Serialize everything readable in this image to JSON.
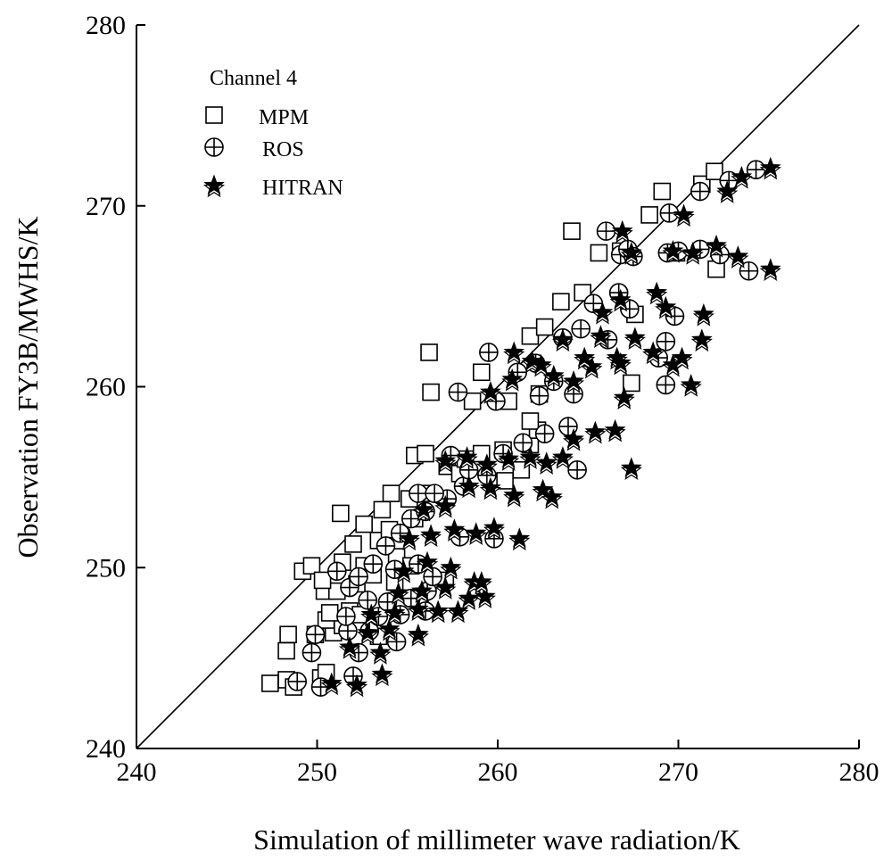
{
  "chart_data": {
    "type": "scatter",
    "xlabel": "Simulation of millimeter wave radiation/K",
    "ylabel": "Observation FY3B/MWHS/K",
    "xlim": [
      240,
      280
    ],
    "ylim": [
      240,
      280
    ],
    "xticks": [
      240,
      250,
      260,
      270,
      280
    ],
    "yticks": [
      240,
      250,
      260,
      270,
      280
    ],
    "grid": false,
    "reference_line": {
      "from": [
        240,
        240
      ],
      "to": [
        280,
        280
      ]
    },
    "legend": {
      "title": "Channel 4",
      "placement": "top-left",
      "entries": [
        "MPM",
        "ROS",
        "HITRAN"
      ]
    },
    "series": [
      {
        "name": "MPM",
        "marker": "open-square",
        "points": [
          [
            247.4,
            243.6
          ],
          [
            248.3,
            243.8
          ],
          [
            248.7,
            243.4
          ],
          [
            250.2,
            243.9
          ],
          [
            250.5,
            244.2
          ],
          [
            248.3,
            245.4
          ],
          [
            248.4,
            246.3
          ],
          [
            249.9,
            246.3
          ],
          [
            250.9,
            246.4
          ],
          [
            251.4,
            246.8
          ],
          [
            250.5,
            247.1
          ],
          [
            250.7,
            247.5
          ],
          [
            251.8,
            247.6
          ],
          [
            252.4,
            247.4
          ],
          [
            250.4,
            248.7
          ],
          [
            251.1,
            248.7
          ],
          [
            252.2,
            249.1
          ],
          [
            249.2,
            249.8
          ],
          [
            249.7,
            250.1
          ],
          [
            250.3,
            249.3
          ],
          [
            251.4,
            250.3
          ],
          [
            252.6,
            250.1
          ],
          [
            253.1,
            249.6
          ],
          [
            252.0,
            251.3
          ],
          [
            253.4,
            251.5
          ],
          [
            251.3,
            253.0
          ],
          [
            252.6,
            252.4
          ],
          [
            253.6,
            253.2
          ],
          [
            254.1,
            254.1
          ],
          [
            255.1,
            253.8
          ],
          [
            254.0,
            252.1
          ],
          [
            255.4,
            252.7
          ],
          [
            256.2,
            254.1
          ],
          [
            254.4,
            250.6
          ],
          [
            255.2,
            250.1
          ],
          [
            255.4,
            256.2
          ],
          [
            256.0,
            256.3
          ],
          [
            257.2,
            255.6
          ],
          [
            257.9,
            255.2
          ],
          [
            258.2,
            256.0
          ],
          [
            259.1,
            256.3
          ],
          [
            260.3,
            256.5
          ],
          [
            260.4,
            254.8
          ],
          [
            261.3,
            255.4
          ],
          [
            261.8,
            256.8
          ],
          [
            262.2,
            257.6
          ],
          [
            261.8,
            258.1
          ],
          [
            262.3,
            259.6
          ],
          [
            256.2,
            261.9
          ],
          [
            256.3,
            259.7
          ],
          [
            258.6,
            259.2
          ],
          [
            259.1,
            260.8
          ],
          [
            260.6,
            259.2
          ],
          [
            261.8,
            262.8
          ],
          [
            262.6,
            263.3
          ],
          [
            263.5,
            264.7
          ],
          [
            264.7,
            265.2
          ],
          [
            264.1,
            268.6
          ],
          [
            265.6,
            267.4
          ],
          [
            266.8,
            267.5
          ],
          [
            268.4,
            269.5
          ],
          [
            269.1,
            270.8
          ],
          [
            267.6,
            264.0
          ],
          [
            267.4,
            260.2
          ],
          [
            269.9,
            267.4
          ],
          [
            271.3,
            271.2
          ],
          [
            272.0,
            271.9
          ],
          [
            272.1,
            266.5
          ],
          [
            253.4,
            246.2
          ],
          [
            255.7,
            248.3
          ],
          [
            257.1,
            249.3
          ],
          [
            254.3,
            249.2
          ]
        ]
      },
      {
        "name": "ROS",
        "marker": "circle-plus",
        "points": [
          [
            248.9,
            243.7
          ],
          [
            250.2,
            243.4
          ],
          [
            252.0,
            244.0
          ],
          [
            249.7,
            245.3
          ],
          [
            249.9,
            246.3
          ],
          [
            251.7,
            246.5
          ],
          [
            252.9,
            246.5
          ],
          [
            251.6,
            247.3
          ],
          [
            253.4,
            247.3
          ],
          [
            254.6,
            247.4
          ],
          [
            251.8,
            248.9
          ],
          [
            252.8,
            248.2
          ],
          [
            253.9,
            248.1
          ],
          [
            255.2,
            248.3
          ],
          [
            256.1,
            248.7
          ],
          [
            251.1,
            249.8
          ],
          [
            252.3,
            249.5
          ],
          [
            253.1,
            250.2
          ],
          [
            254.3,
            249.9
          ],
          [
            255.6,
            250.2
          ],
          [
            256.4,
            249.5
          ],
          [
            253.8,
            251.2
          ],
          [
            254.6,
            251.9
          ],
          [
            255.2,
            252.7
          ],
          [
            256.0,
            253.1
          ],
          [
            257.2,
            253.8
          ],
          [
            258.1,
            254.5
          ],
          [
            257.9,
            251.7
          ],
          [
            259.8,
            251.6
          ],
          [
            255.6,
            254.1
          ],
          [
            256.5,
            254.1
          ],
          [
            257.4,
            256.2
          ],
          [
            258.4,
            255.4
          ],
          [
            259.4,
            255.1
          ],
          [
            260.3,
            256.3
          ],
          [
            261.4,
            256.9
          ],
          [
            262.6,
            257.4
          ],
          [
            263.9,
            257.8
          ],
          [
            264.4,
            255.4
          ],
          [
            257.8,
            259.7
          ],
          [
            259.9,
            259.2
          ],
          [
            261.1,
            260.8
          ],
          [
            262.3,
            259.5
          ],
          [
            263.1,
            260.3
          ],
          [
            264.2,
            259.6
          ],
          [
            259.5,
            261.9
          ],
          [
            262.1,
            261.3
          ],
          [
            263.6,
            262.7
          ],
          [
            264.6,
            263.2
          ],
          [
            265.3,
            264.6
          ],
          [
            266.7,
            265.2
          ],
          [
            266.0,
            268.6
          ],
          [
            266.8,
            267.3
          ],
          [
            267.2,
            267.6
          ],
          [
            267.5,
            267.2
          ],
          [
            269.4,
            267.4
          ],
          [
            270.0,
            267.5
          ],
          [
            271.2,
            267.6
          ],
          [
            272.3,
            267.3
          ],
          [
            273.9,
            266.4
          ],
          [
            269.5,
            269.6
          ],
          [
            271.2,
            270.8
          ],
          [
            272.8,
            271.4
          ],
          [
            274.3,
            272.0
          ],
          [
            268.9,
            261.6
          ],
          [
            269.3,
            262.5
          ],
          [
            269.3,
            260.1
          ],
          [
            269.8,
            263.9
          ],
          [
            267.3,
            264.3
          ],
          [
            266.1,
            262.6
          ],
          [
            256.0,
            247.6
          ],
          [
            252.3,
            245.3
          ],
          [
            254.4,
            245.9
          ]
        ]
      },
      {
        "name": "HITRAN",
        "marker": "star",
        "points": [
          [
            250.8,
            243.6
          ],
          [
            252.2,
            243.5
          ],
          [
            253.6,
            244.1
          ],
          [
            251.8,
            245.6
          ],
          [
            252.8,
            246.4
          ],
          [
            254.0,
            246.6
          ],
          [
            253.5,
            245.3
          ],
          [
            255.6,
            246.3
          ],
          [
            253.0,
            247.4
          ],
          [
            254.3,
            247.5
          ],
          [
            255.6,
            247.7
          ],
          [
            256.7,
            247.6
          ],
          [
            257.8,
            247.6
          ],
          [
            254.5,
            248.6
          ],
          [
            255.8,
            248.7
          ],
          [
            257.1,
            248.9
          ],
          [
            258.4,
            248.3
          ],
          [
            259.3,
            248.4
          ],
          [
            254.8,
            249.8
          ],
          [
            256.1,
            250.3
          ],
          [
            257.4,
            250.0
          ],
          [
            258.7,
            249.2
          ],
          [
            259.1,
            249.2
          ],
          [
            255.1,
            251.6
          ],
          [
            256.3,
            251.8
          ],
          [
            257.6,
            252.1
          ],
          [
            258.8,
            251.9
          ],
          [
            259.8,
            252.2
          ],
          [
            261.2,
            251.6
          ],
          [
            255.9,
            253.2
          ],
          [
            257.1,
            253.4
          ],
          [
            258.4,
            254.5
          ],
          [
            259.6,
            254.4
          ],
          [
            260.9,
            254.0
          ],
          [
            262.5,
            254.3
          ],
          [
            263.0,
            253.9
          ],
          [
            257.1,
            255.9
          ],
          [
            258.3,
            256.1
          ],
          [
            259.4,
            255.7
          ],
          [
            260.6,
            256.0
          ],
          [
            261.8,
            256.1
          ],
          [
            262.7,
            255.8
          ],
          [
            263.6,
            256.1
          ],
          [
            264.2,
            257.1
          ],
          [
            265.4,
            257.5
          ],
          [
            266.5,
            257.6
          ],
          [
            267.4,
            255.5
          ],
          [
            259.6,
            259.7
          ],
          [
            260.8,
            260.4
          ],
          [
            261.9,
            261.4
          ],
          [
            263.1,
            260.6
          ],
          [
            264.2,
            260.3
          ],
          [
            265.2,
            261.1
          ],
          [
            266.6,
            261.6
          ],
          [
            267.0,
            259.4
          ],
          [
            260.9,
            261.9
          ],
          [
            262.4,
            261.2
          ],
          [
            263.6,
            262.6
          ],
          [
            264.8,
            261.6
          ],
          [
            265.7,
            262.8
          ],
          [
            266.8,
            261.3
          ],
          [
            267.6,
            262.7
          ],
          [
            268.6,
            261.9
          ],
          [
            269.7,
            261.2
          ],
          [
            270.2,
            261.6
          ],
          [
            270.7,
            260.1
          ],
          [
            271.3,
            262.6
          ],
          [
            271.4,
            264.0
          ],
          [
            265.8,
            264.1
          ],
          [
            266.8,
            264.8
          ],
          [
            268.8,
            265.2
          ],
          [
            269.3,
            264.4
          ],
          [
            266.9,
            268.6
          ],
          [
            267.4,
            267.4
          ],
          [
            269.7,
            267.5
          ],
          [
            270.8,
            267.4
          ],
          [
            272.1,
            267.8
          ],
          [
            273.3,
            267.2
          ],
          [
            275.1,
            266.5
          ],
          [
            270.3,
            269.5
          ],
          [
            272.7,
            270.8
          ],
          [
            273.5,
            271.6
          ],
          [
            275.1,
            272.1
          ]
        ]
      }
    ]
  }
}
